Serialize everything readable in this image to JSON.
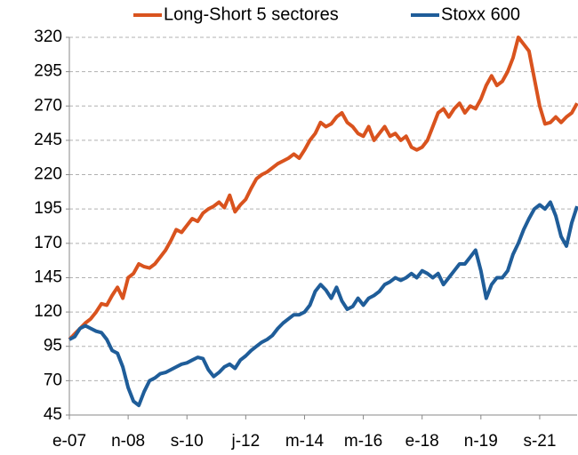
{
  "chart_data": {
    "type": "line",
    "categories": [
      "e-07",
      null,
      null,
      null,
      null,
      null,
      null,
      null,
      null,
      null,
      null,
      "n-08",
      null,
      null,
      null,
      null,
      null,
      null,
      null,
      null,
      null,
      null,
      "s-10",
      null,
      null,
      null,
      null,
      null,
      null,
      null,
      null,
      null,
      null,
      "j-12",
      null,
      null,
      null,
      null,
      null,
      null,
      null,
      null,
      null,
      null,
      "m-14",
      null,
      null,
      null,
      null,
      null,
      null,
      null,
      null,
      null,
      null,
      "m-16",
      null,
      null,
      null,
      null,
      null,
      null,
      null,
      null,
      null,
      null,
      "e-18",
      null,
      null,
      null,
      null,
      null,
      null,
      null,
      null,
      null,
      null,
      "n-19",
      null,
      null,
      null,
      null,
      null,
      null,
      null,
      null,
      null,
      null,
      "s-21",
      null,
      null,
      null,
      null,
      null,
      null,
      null
    ],
    "series": [
      {
        "name": "Long-Short 5 sectores",
        "color": "#d9531e",
        "values": [
          100,
          104,
          108,
          112,
          115,
          120,
          126,
          125,
          132,
          138,
          130,
          145,
          148,
          155,
          153,
          152,
          155,
          160,
          165,
          172,
          180,
          178,
          183,
          188,
          186,
          192,
          195,
          197,
          200,
          196,
          205,
          193,
          198,
          202,
          210,
          217,
          220,
          222,
          225,
          228,
          230,
          232,
          235,
          232,
          238,
          245,
          250,
          258,
          255,
          257,
          262,
          265,
          258,
          255,
          250,
          248,
          255,
          245,
          250,
          255,
          248,
          250,
          245,
          248,
          240,
          238,
          240,
          245,
          255,
          265,
          268,
          262,
          268,
          272,
          265,
          270,
          268,
          275,
          285,
          292,
          285,
          288,
          295,
          305,
          320,
          315,
          310,
          290,
          270,
          257,
          258,
          262,
          258,
          262,
          265,
          272
        ]
      },
      {
        "name": "Stoxx 600",
        "color": "#1f5d99",
        "values": [
          100,
          102,
          108,
          110,
          108,
          106,
          105,
          100,
          92,
          90,
          80,
          65,
          55,
          52,
          62,
          70,
          72,
          75,
          76,
          78,
          80,
          82,
          83,
          85,
          87,
          86,
          78,
          73,
          76,
          80,
          82,
          79,
          85,
          88,
          92,
          95,
          98,
          100,
          103,
          108,
          112,
          115,
          118,
          118,
          120,
          125,
          135,
          140,
          136,
          130,
          138,
          128,
          122,
          124,
          130,
          125,
          130,
          132,
          135,
          140,
          142,
          145,
          143,
          145,
          148,
          145,
          150,
          148,
          145,
          148,
          140,
          145,
          150,
          155,
          155,
          160,
          165,
          150,
          130,
          140,
          145,
          145,
          150,
          162,
          170,
          180,
          188,
          195,
          198,
          195,
          200,
          190,
          175,
          168,
          185,
          197
        ]
      }
    ],
    "ylim": [
      45,
      320
    ],
    "yticks": [
      45,
      70,
      95,
      120,
      145,
      170,
      195,
      220,
      245,
      270,
      295,
      320
    ],
    "grid": true,
    "legend": "top"
  }
}
